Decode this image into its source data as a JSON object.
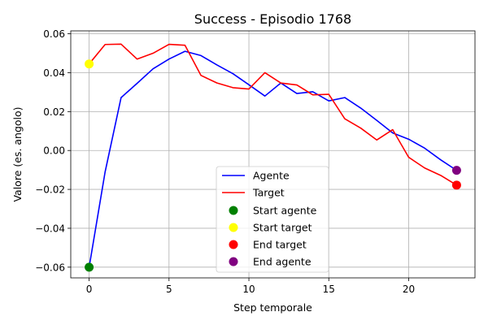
{
  "chart_data": {
    "type": "line",
    "title": "Success - Episodio 1768",
    "xlabel": "Step temporale",
    "ylabel": "Valore (es. angolo)",
    "xlim": [
      -1.15,
      24.15
    ],
    "ylim": [
      -0.0655,
      0.0615
    ],
    "xticks": [
      0,
      5,
      10,
      15,
      20
    ],
    "xtick_labels": [
      "0",
      "5",
      "10",
      "15",
      "20"
    ],
    "yticks": [
      -0.06,
      -0.04,
      -0.02,
      0.0,
      0.02,
      0.04,
      0.06
    ],
    "ytick_labels": [
      "−0.06",
      "−0.04",
      "−0.02",
      "0.00",
      "0.02",
      "0.04",
      "0.06"
    ],
    "grid": true,
    "legend_position": "lower-center",
    "series": [
      {
        "name": "Agente",
        "color": "#0000ff",
        "x": [
          0,
          1,
          2,
          3,
          4,
          5,
          6,
          7,
          8,
          9,
          10,
          11,
          12,
          13,
          14,
          15,
          16,
          17,
          18,
          19,
          20,
          21,
          22,
          23
        ],
        "y": [
          -0.06,
          -0.011,
          0.0272,
          0.0345,
          0.042,
          0.047,
          0.051,
          0.0488,
          0.044,
          0.0395,
          0.0338,
          0.028,
          0.0347,
          0.0293,
          0.0302,
          0.0255,
          0.0272,
          0.0218,
          0.0155,
          0.009,
          0.0058,
          0.0012,
          -0.0048,
          -0.0102
        ]
      },
      {
        "name": "Target",
        "color": "#ff0000",
        "x": [
          0,
          1,
          2,
          3,
          4,
          5,
          6,
          7,
          8,
          9,
          10,
          11,
          12,
          13,
          14,
          15,
          16,
          17,
          18,
          19,
          20,
          21,
          22,
          23
        ],
        "y": [
          0.0445,
          0.0545,
          0.0547,
          0.047,
          0.05,
          0.0546,
          0.0541,
          0.0386,
          0.0347,
          0.0323,
          0.0316,
          0.04,
          0.0347,
          0.0337,
          0.0286,
          0.0289,
          0.0163,
          0.0115,
          0.0054,
          0.0107,
          -0.0035,
          -0.009,
          -0.0128,
          -0.0178
        ]
      }
    ],
    "markers": [
      {
        "name": "Start agente",
        "color": "#008000",
        "x": 0,
        "y": -0.06
      },
      {
        "name": "Start target",
        "color": "#ffff00",
        "x": 0,
        "y": 0.0445
      },
      {
        "name": "End target",
        "color": "#ff0000",
        "x": 23,
        "y": -0.0178
      },
      {
        "name": "End agente",
        "color": "#800080",
        "x": 23,
        "y": -0.0102
      }
    ]
  }
}
